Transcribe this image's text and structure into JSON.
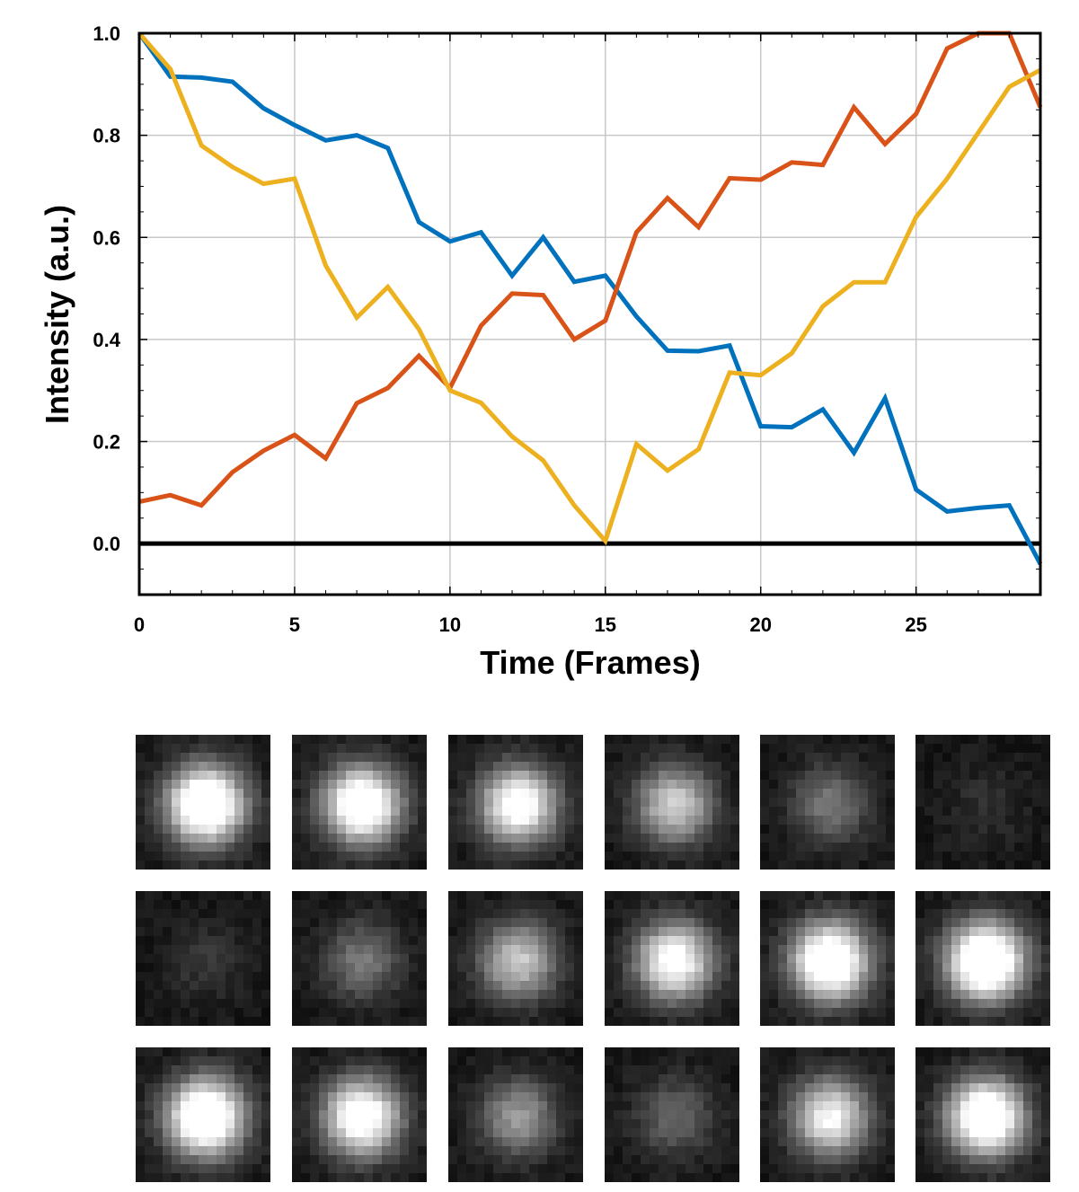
{
  "chart_data": {
    "type": "line",
    "title": "",
    "xlabel": "Time (Frames)",
    "ylabel": "Intensity (a.u.)",
    "xlim": [
      0,
      29
    ],
    "ylim": [
      -0.1,
      1.0
    ],
    "xticks": [
      0,
      5,
      10,
      15,
      20,
      25
    ],
    "yticks": [
      0.0,
      0.2,
      0.4,
      0.6,
      0.8,
      1.0
    ],
    "xtick_labels": [
      "0",
      "5",
      "10",
      "15",
      "20",
      "25"
    ],
    "ytick_labels": [
      "0.0",
      "0.2",
      "0.4",
      "0.6",
      "0.8",
      "1.0"
    ],
    "grid": true,
    "zero_line": true,
    "x": [
      0,
      1,
      2,
      3,
      4,
      5,
      6,
      7,
      8,
      9,
      10,
      11,
      12,
      13,
      14,
      15,
      16,
      17,
      18,
      19,
      20,
      21,
      22,
      23,
      24,
      25,
      26,
      27,
      28,
      29
    ],
    "series": [
      {
        "color": "#0072BD",
        "values": [
          1.0,
          0.915,
          0.913,
          0.905,
          0.853,
          0.82,
          0.79,
          0.8,
          0.775,
          0.63,
          0.592,
          0.61,
          0.525,
          0.6,
          0.513,
          0.525,
          0.445,
          0.378,
          0.377,
          0.388,
          0.23,
          0.228,
          0.263,
          0.178,
          0.285,
          0.106,
          0.063,
          0.07,
          0.075,
          -0.04
        ]
      },
      {
        "color": "#D95319",
        "values": [
          0.082,
          0.095,
          0.075,
          0.14,
          0.182,
          0.213,
          0.167,
          0.275,
          0.305,
          0.368,
          0.305,
          0.427,
          0.49,
          0.487,
          0.4,
          0.437,
          0.61,
          0.677,
          0.62,
          0.716,
          0.713,
          0.747,
          0.742,
          0.855,
          0.783,
          0.842,
          0.97,
          1.0,
          1.0,
          0.855
        ]
      },
      {
        "color": "#EDB120",
        "values": [
          1.0,
          0.93,
          0.78,
          0.738,
          0.705,
          0.715,
          0.545,
          0.443,
          0.503,
          0.42,
          0.3,
          0.276,
          0.21,
          0.163,
          0.075,
          0.005,
          0.195,
          0.143,
          0.185,
          0.335,
          0.33,
          0.373,
          0.465,
          0.512,
          0.512,
          0.64,
          0.715,
          0.805,
          0.895,
          0.928
        ]
      }
    ]
  },
  "image_panel": {
    "rows": 3,
    "cols": 6,
    "tiles": [
      {
        "brightness": 1.0
      },
      {
        "brightness": 0.92
      },
      {
        "brightness": 0.8
      },
      {
        "brightness": 0.58
      },
      {
        "brightness": 0.3
      },
      {
        "brightness": 0.08
      },
      {
        "brightness": 0.1
      },
      {
        "brightness": 0.3
      },
      {
        "brightness": 0.55
      },
      {
        "brightness": 0.78
      },
      {
        "brightness": 0.97
      },
      {
        "brightness": 1.05
      },
      {
        "brightness": 1.0
      },
      {
        "brightness": 0.85
      },
      {
        "brightness": 0.4
      },
      {
        "brightness": 0.25
      },
      {
        "brightness": 0.7
      },
      {
        "brightness": 0.95
      }
    ]
  }
}
